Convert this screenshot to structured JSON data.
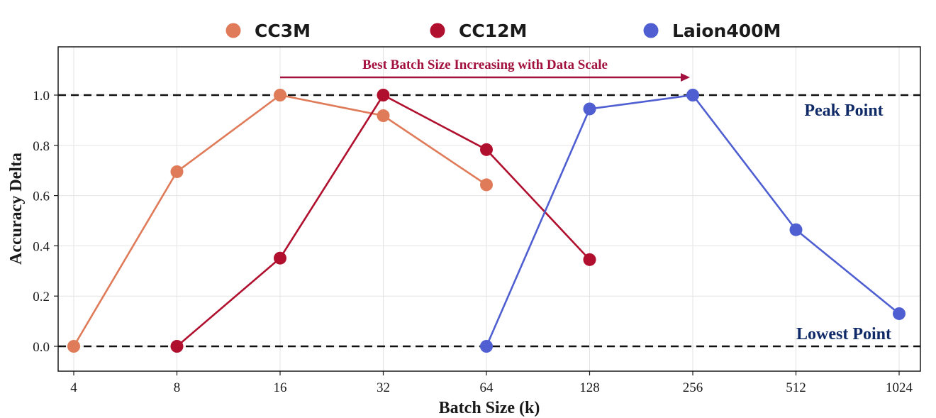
{
  "chart_data": {
    "type": "line",
    "xlabel": "Batch Size (k)",
    "ylabel": "Accuracy Delta",
    "x_categories": [
      "4",
      "8",
      "16",
      "32",
      "64",
      "128",
      "256",
      "512",
      "1024"
    ],
    "y_ticks": [
      "0.0",
      "0.2",
      "0.4",
      "0.6",
      "0.8",
      "1.0"
    ],
    "ylim": [
      -0.1,
      1.17
    ],
    "grid": true,
    "legend_position": "top",
    "series": [
      {
        "name": "CC3M",
        "color": "#e07b5a",
        "points": [
          {
            "x": "4",
            "y": 0.0
          },
          {
            "x": "8",
            "y": 0.695
          },
          {
            "x": "16",
            "y": 1.0
          },
          {
            "x": "32",
            "y": 0.918
          },
          {
            "x": "64",
            "y": 0.643
          }
        ]
      },
      {
        "name": "CC12M",
        "color": "#b0102e",
        "points": [
          {
            "x": "8",
            "y": 0.0
          },
          {
            "x": "16",
            "y": 0.351
          },
          {
            "x": "32",
            "y": 1.0
          },
          {
            "x": "64",
            "y": 0.783
          },
          {
            "x": "128",
            "y": 0.345
          }
        ]
      },
      {
        "name": "Laion400M",
        "color": "#4f5fd2",
        "points": [
          {
            "x": "64",
            "y": 0.0
          },
          {
            "x": "128",
            "y": 0.945
          },
          {
            "x": "256",
            "y": 1.0
          },
          {
            "x": "512",
            "y": 0.464
          },
          {
            "x": "1024",
            "y": 0.13
          }
        ]
      }
    ],
    "reference_lines": [
      {
        "y": 1.0,
        "label": "Peak Point",
        "label_color": "#0f2a66"
      },
      {
        "y": 0.0,
        "label": "Lowest Point",
        "label_color": "#0f2a66"
      }
    ],
    "annotation": {
      "text": "Best Batch Size Increasing with Data Scale",
      "color": "#a3123e",
      "arrow_from_x": "16",
      "arrow_to_x": "256"
    }
  }
}
